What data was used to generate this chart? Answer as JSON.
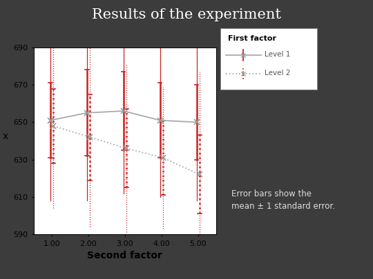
{
  "title": "Results of the experiment",
  "xlabel": "Second factor",
  "ylabel": "x",
  "xlim": [
    0.5,
    5.5
  ],
  "ylim": [
    590,
    690
  ],
  "yticks": [
    590,
    610,
    630,
    650,
    670,
    690
  ],
  "xticks": [
    1.0,
    2.0,
    3.0,
    4.0,
    5.0
  ],
  "xtick_labels": [
    "1.00",
    "2.00",
    "3.00",
    "4.00",
    "5.00"
  ],
  "background_dark": "#3c3c3c",
  "plot_bg": "#ffffff",
  "legend_title": "First factor",
  "level1_label": "Level 1",
  "level2_label": "Level 2",
  "level1_means": [
    651,
    655,
    656,
    651,
    650
  ],
  "level1_se_small": [
    20,
    23,
    21,
    20,
    20
  ],
  "level1_se_large": [
    43,
    47,
    44,
    41,
    42
  ],
  "level2_means": [
    648,
    642,
    636,
    631,
    622
  ],
  "level2_se_small": [
    20,
    23,
    21,
    20,
    21
  ],
  "level2_se_large": [
    44,
    48,
    45,
    38,
    55
  ],
  "x_positions": [
    1.0,
    2.0,
    3.0,
    4.0,
    5.0
  ],
  "line1_color": "#aaaaaa",
  "line2_color": "#aaaaaa",
  "err1_color": "#cc2222",
  "err2_color": "#cc2222",
  "title_color": "#ffffff",
  "note_text": "Error bars show the\nmean ± 1 standard error.",
  "note_color": "#dddddd"
}
